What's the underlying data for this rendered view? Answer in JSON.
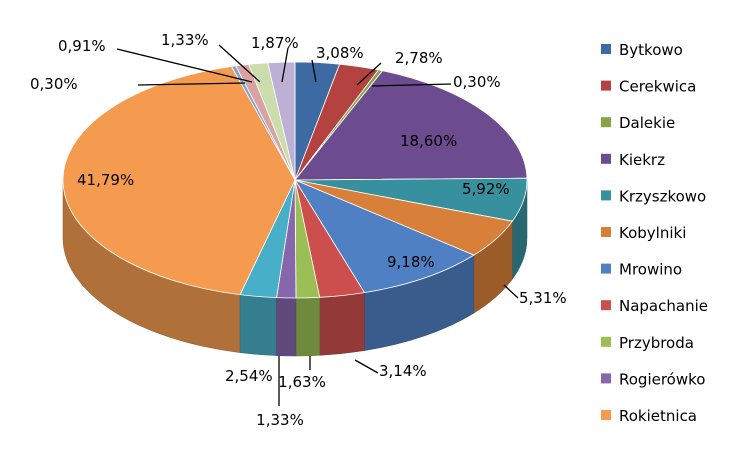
{
  "chart_data": {
    "type": "pie",
    "style": "3d-exploded-none",
    "legend_position": "right",
    "slices": [
      {
        "name": "Bytkowo",
        "value": 3.08,
        "label": "3,08%",
        "color": "#3e6aa3"
      },
      {
        "name": "Cerekwica",
        "value": 2.78,
        "label": "2,78%",
        "color": "#b34240"
      },
      {
        "name": "Dalekie",
        "value": 0.3,
        "label": "0,30%",
        "color": "#86a544"
      },
      {
        "name": "Kiekrz",
        "value": 18.6,
        "label": "18,60%",
        "color": "#6c4b8e"
      },
      {
        "name": "Krzyszkowo",
        "value": 5.92,
        "label": "5,92%",
        "color": "#37909e"
      },
      {
        "name": "Kobylniki",
        "value": 5.31,
        "label": "5,31%",
        "color": "#d8803a"
      },
      {
        "name": "Mrowino",
        "value": 9.18,
        "label": "9,18%",
        "color": "#4f80c3"
      },
      {
        "name": "Napachanie",
        "value": 3.14,
        "label": "3,14%",
        "color": "#cc4f4d"
      },
      {
        "name": "Przybroda",
        "value": 1.63,
        "label": "1,63%",
        "color": "#9cbf55"
      },
      {
        "name": "Rogierówko",
        "value": 1.33,
        "label": "1,33%",
        "color": "#8667ae"
      },
      {
        "name": "",
        "value": 2.54,
        "label": "2,54%",
        "color": "#48afc8"
      },
      {
        "name": "Rokietnica",
        "value": 41.79,
        "label": "41,79%",
        "color": "#f59b4f"
      },
      {
        "name": "",
        "value": 0.3,
        "label": "0,30%",
        "color": "#7fa0d0"
      },
      {
        "name": "",
        "value": 0.91,
        "label": "0,91%",
        "color": "#d9a3a2"
      },
      {
        "name": "",
        "value": 1.33,
        "label": "1,33%",
        "color": "#cbdcad"
      },
      {
        "name": "",
        "value": 1.87,
        "label": "1,87%",
        "color": "#bcb0d4"
      }
    ]
  }
}
